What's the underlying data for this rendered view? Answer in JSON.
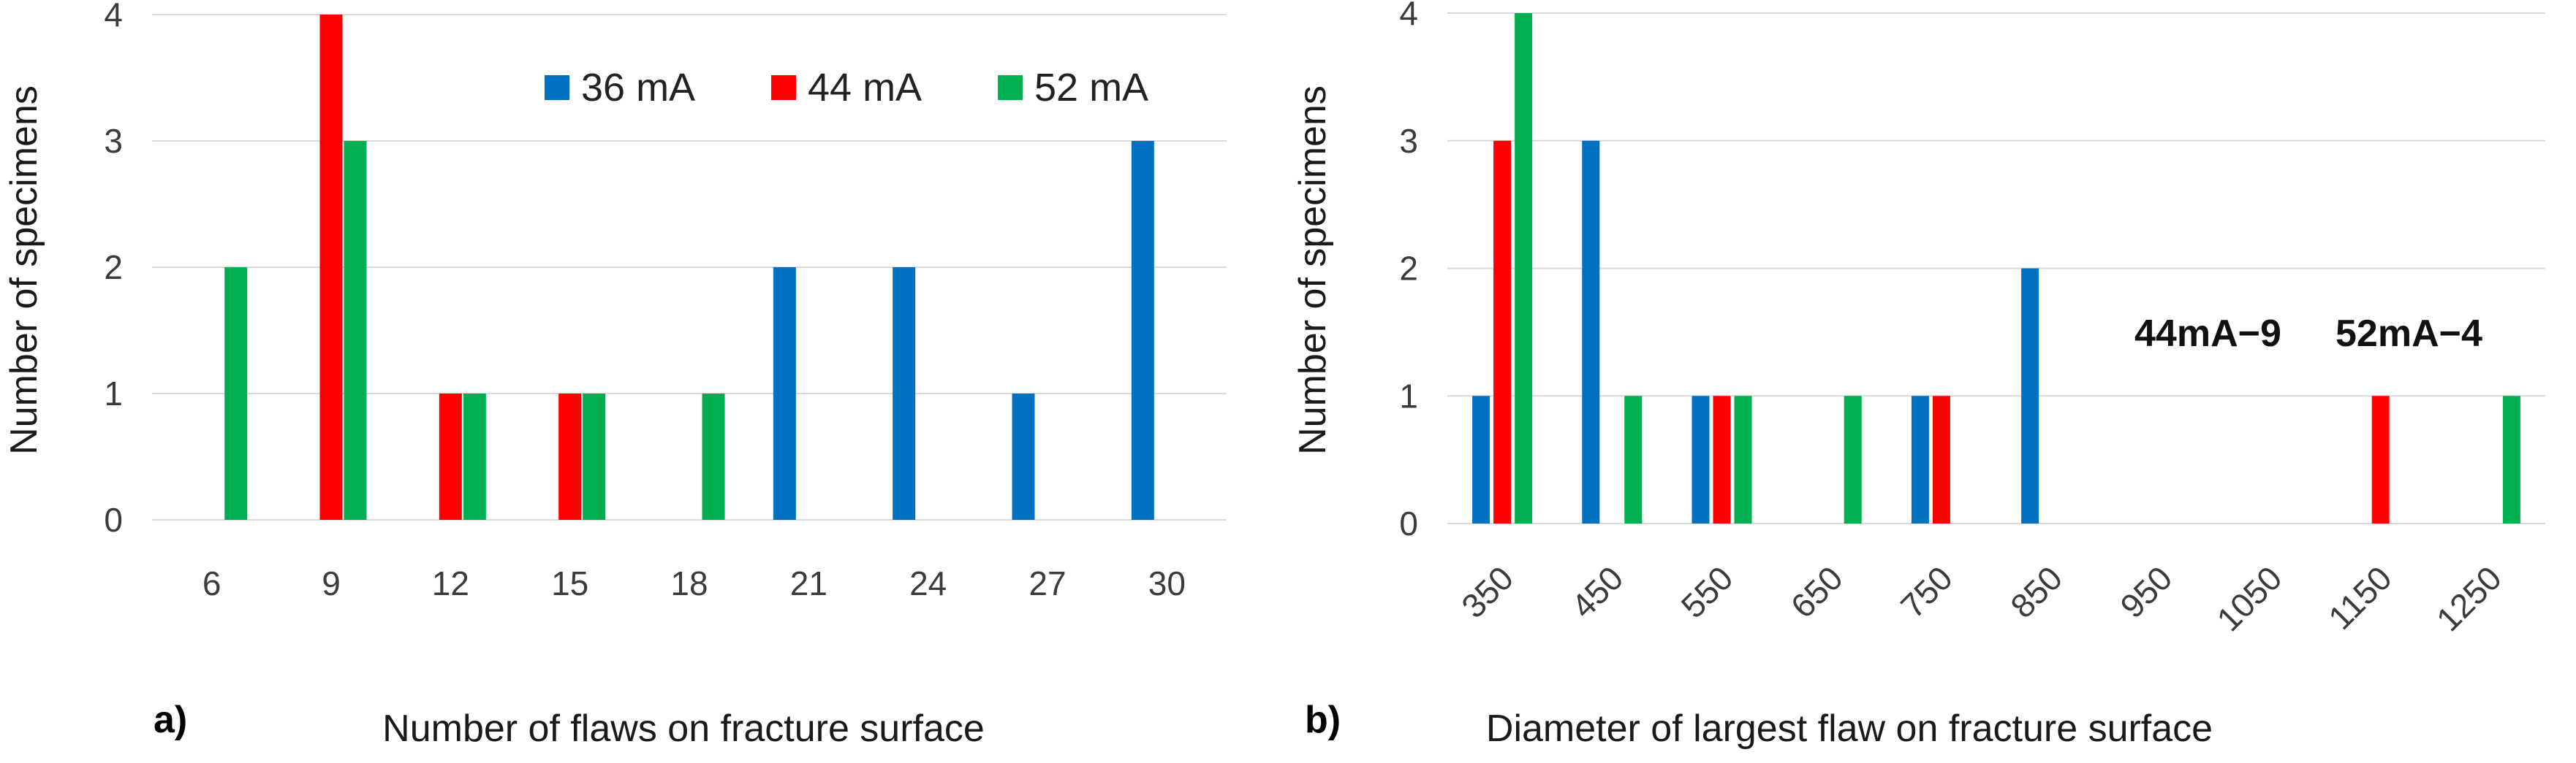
{
  "colors": {
    "36 mA": "#0070c0",
    "44 mA": "#ff0000",
    "52 mA": "#00b050"
  },
  "chart_data": [
    {
      "type": "bar",
      "panel_label": "a)",
      "xlabel": "Number of flaws on fracture surface",
      "ylabel": "Number of specimens",
      "ylim": [
        0,
        4
      ],
      "yticks": [
        "0",
        "1",
        "2",
        "3",
        "4"
      ],
      "grid": true,
      "legend": "top-right",
      "categories": [
        "6",
        "9",
        "12",
        "15",
        "18",
        "21",
        "24",
        "27",
        "30"
      ],
      "series": [
        {
          "name": "36 mA",
          "values": [
            0,
            0,
            0,
            0,
            0,
            2,
            2,
            1,
            3
          ]
        },
        {
          "name": "44 mA",
          "values": [
            0,
            4,
            1,
            1,
            0,
            0,
            0,
            0,
            0
          ]
        },
        {
          "name": "52 mA",
          "values": [
            2,
            3,
            1,
            1,
            1,
            0,
            0,
            0,
            0
          ]
        }
      ]
    },
    {
      "type": "bar",
      "panel_label": "b)",
      "xlabel": "Diameter of largest flaw on fracture surface",
      "ylabel": "Number of specimens",
      "ylim": [
        0,
        4
      ],
      "yticks": [
        "0",
        "1",
        "2",
        "3",
        "4"
      ],
      "grid": true,
      "categories": [
        "350",
        "450",
        "550",
        "650",
        "750",
        "850",
        "950",
        "1050",
        "1150",
        "1250"
      ],
      "series": [
        {
          "name": "36 mA",
          "values": [
            1,
            3,
            1,
            0,
            1,
            2,
            0,
            0,
            0,
            0
          ]
        },
        {
          "name": "44 mA",
          "values": [
            3,
            0,
            1,
            0,
            1,
            0,
            0,
            0,
            1,
            0
          ]
        },
        {
          "name": "52 mA",
          "values": [
            4,
            1,
            1,
            1,
            0,
            0,
            0,
            0,
            0,
            1
          ]
        }
      ],
      "annotations": [
        "44mA−9",
        "52mA−4"
      ]
    }
  ]
}
